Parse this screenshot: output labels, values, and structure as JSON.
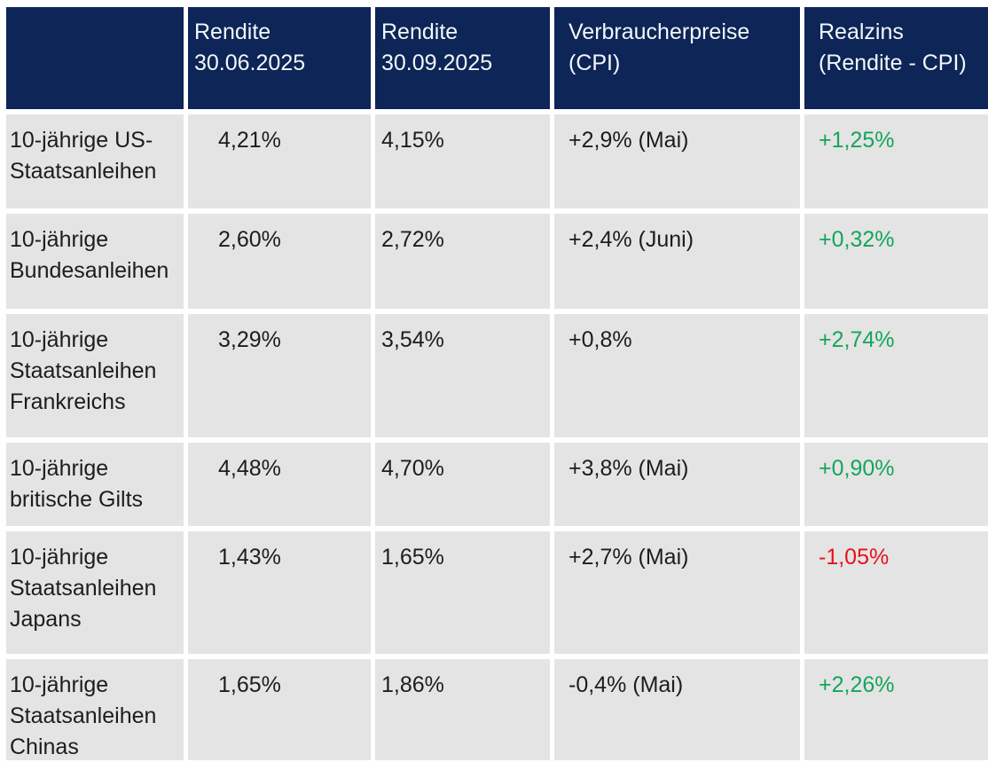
{
  "chart_data": {
    "type": "table",
    "columns": [
      "",
      "Rendite 30.06.2025",
      "Rendite 30.09.2025",
      "Verbraucherpreise (CPI)",
      "Realzins (Rendite - CPI)"
    ],
    "rows": [
      [
        "10-jährige US-Staatsanleihen",
        "4,21%",
        "4,15%",
        "+2,9% (Mai)",
        "+1,25%"
      ],
      [
        "10-jährige Bundesanleihen",
        "2,60%",
        "2,72%",
        "+2,4% (Juni)",
        "+0,32%"
      ],
      [
        "10-jährige Staatsanleihen Frankreichs",
        "3,29%",
        "3,54%",
        "+0,8%",
        "+2,74%"
      ],
      [
        "10-jährige britische Gilts",
        "4,48%",
        "4,70%",
        "+3,8% (Mai)",
        "+0,90%"
      ],
      [
        "10-jährige Staatsanleihen Japans",
        "1,43%",
        "1,65%",
        "+2,7% (Mai)",
        "-1,05%"
      ],
      [
        "10-jährige Staatsanleihen Chinas",
        "1,65%",
        "1,86%",
        "-0,4% (Mai)",
        "+2,26%"
      ]
    ],
    "realzins_colors": [
      "positive",
      "positive",
      "positive",
      "positive",
      "negative",
      "positive"
    ],
    "layout": {
      "header_position": "top",
      "grid": "off",
      "gap_color": "#ffffff"
    }
  },
  "colors": {
    "header-bg": "#0d2557",
    "header-text": "#f4f7f9",
    "row-bg": "#e4e4e4",
    "body-text": "#1d1d1d",
    "positive": "#13a65b",
    "negative": "#e8111a",
    "page-bg": "#ffffff"
  }
}
